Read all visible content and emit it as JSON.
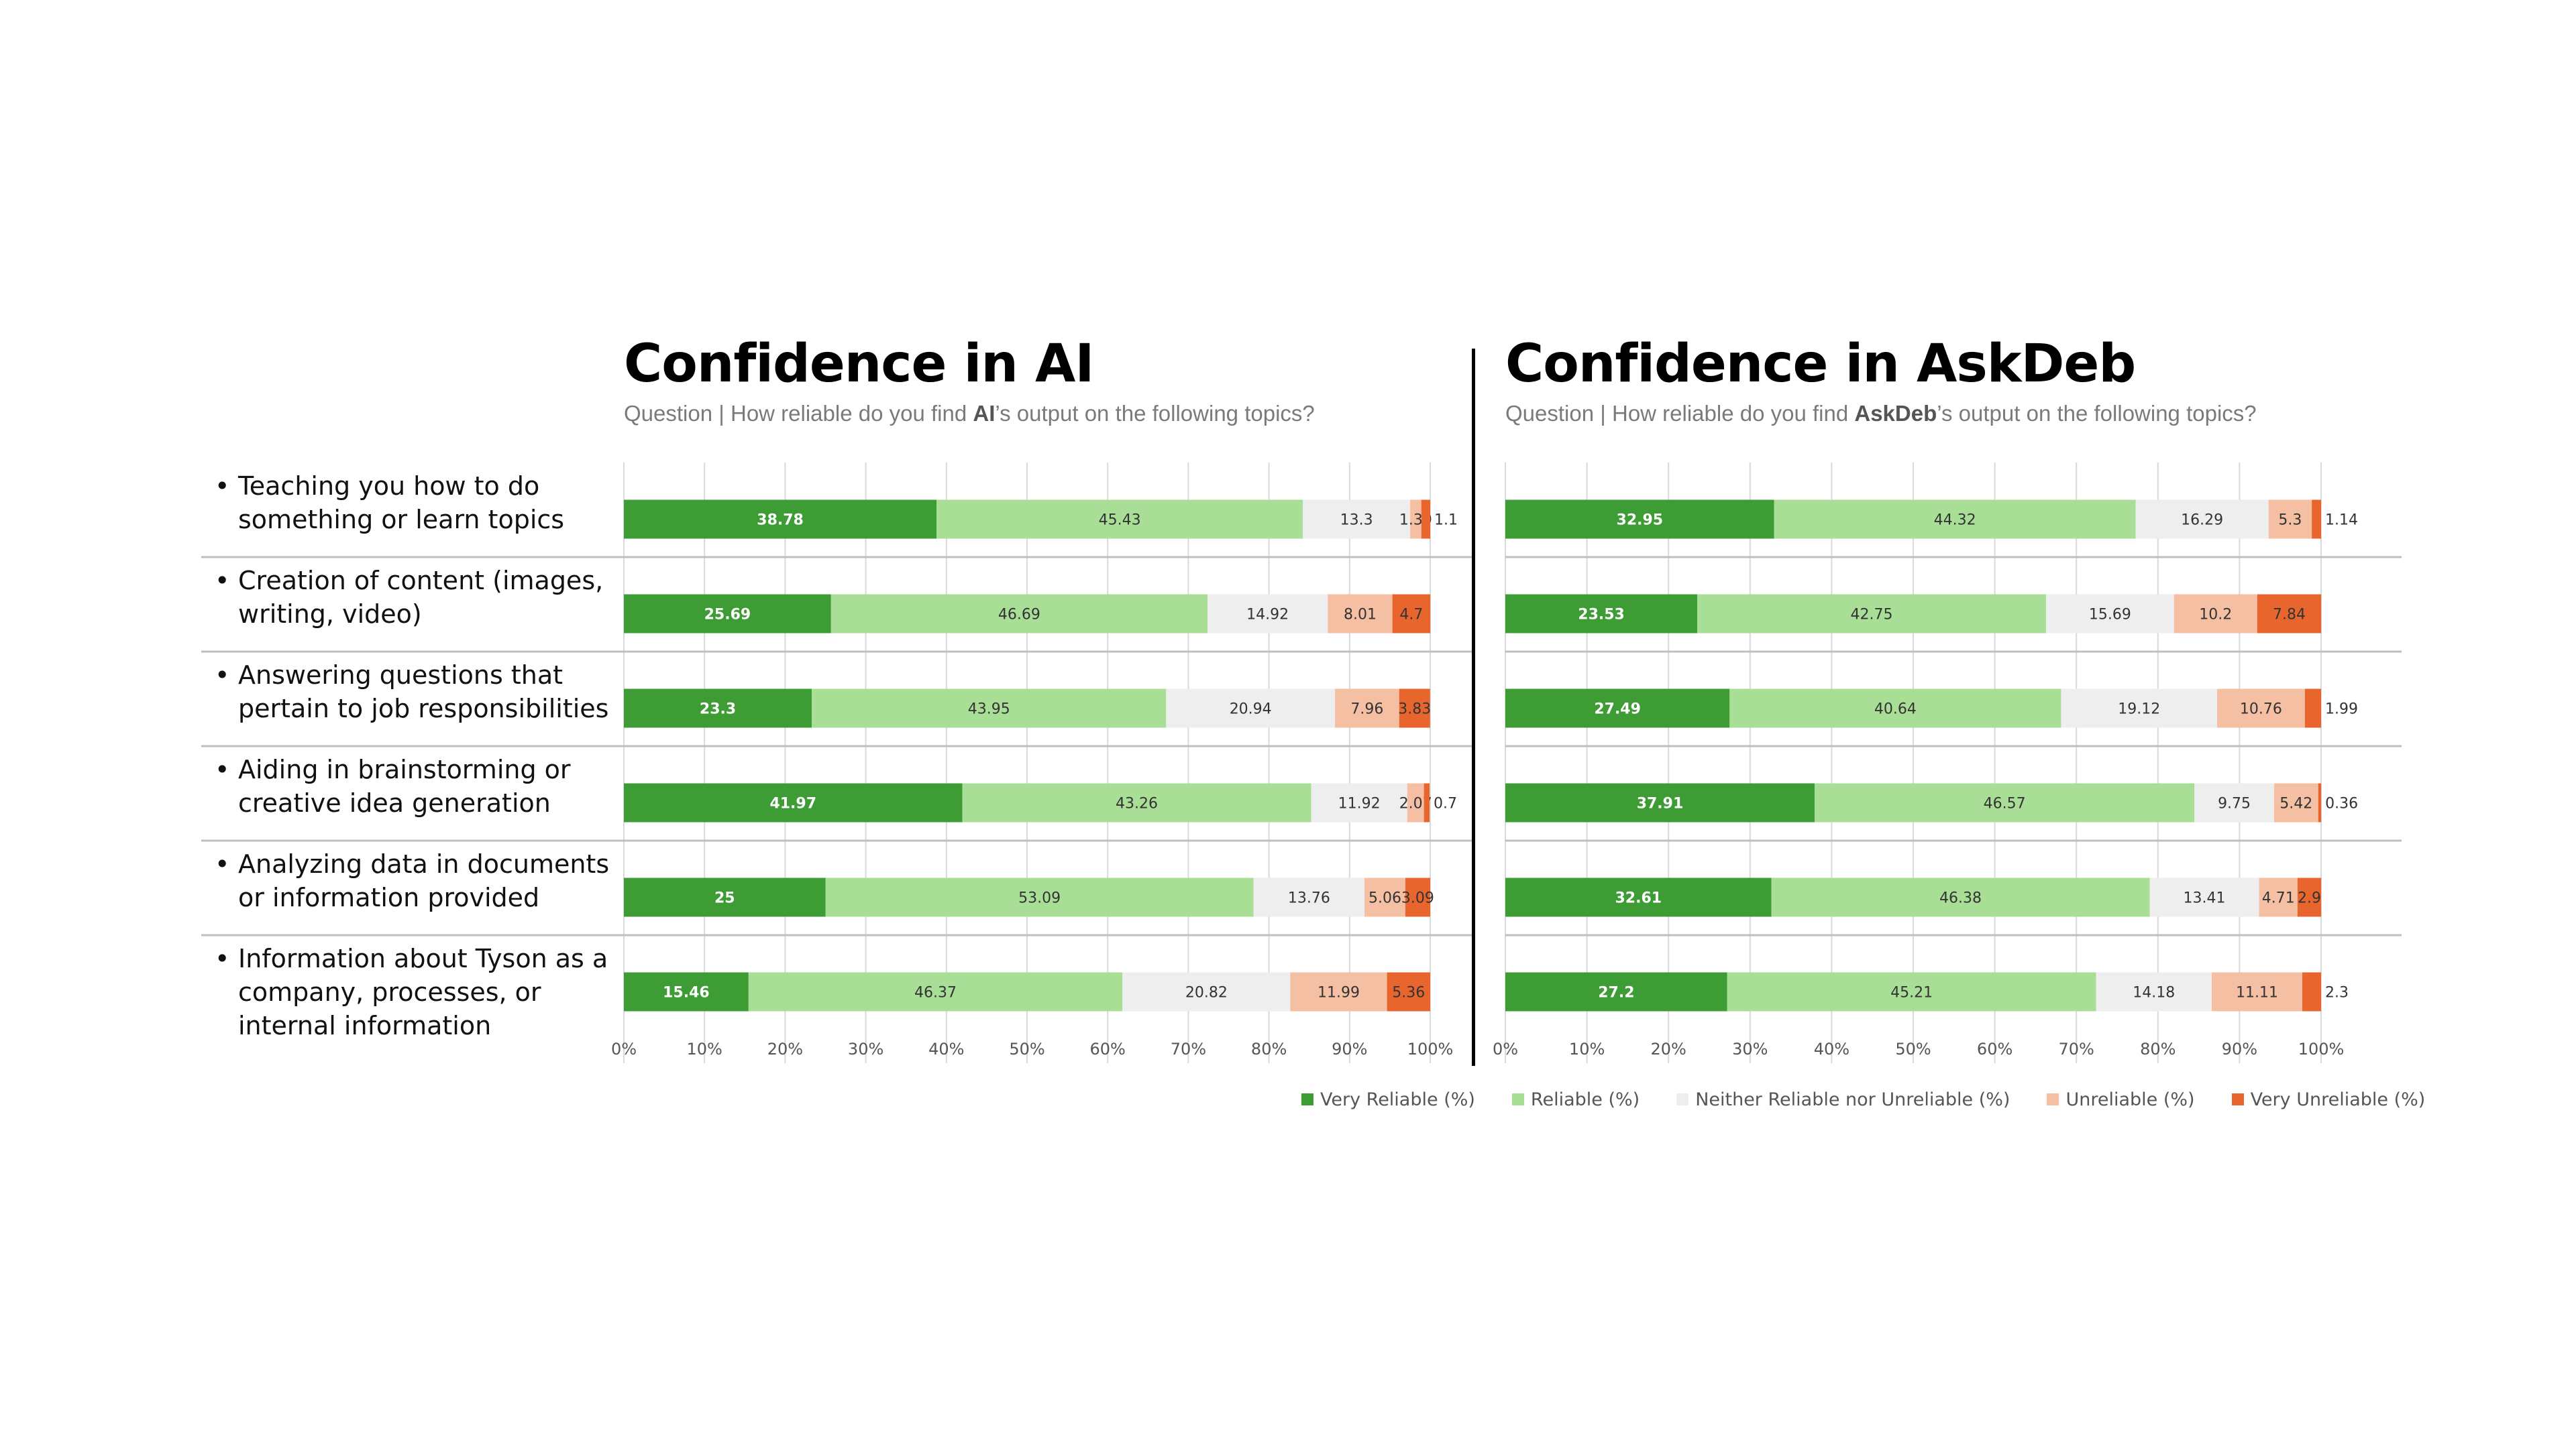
{
  "charts": [
    {
      "title": "Confidence in AI",
      "subtitle_prefix": "Question | How reliable do you find ",
      "subtitle_bold": "AI",
      "subtitle_suffix": "’s output on the following topics?"
    },
    {
      "title": "Confidence in AskDeb",
      "subtitle_prefix": "Question | How reliable do you find ",
      "subtitle_bold": "AskDeb",
      "subtitle_suffix": "’s output on the following topics?"
    }
  ],
  "categories": [
    "Teaching you how to do something or learn topics",
    "Creation of content (images, writing, video)",
    "Answering questions that pertain to job responsibilities",
    "Aiding in brainstorming or creative idea generation",
    "Analyzing data in documents or information provided",
    "Information about Tyson as a company, processes, or internal information"
  ],
  "bullet": "•",
  "legend": [
    {
      "label": "Very Reliable (%)",
      "color": "#3e9c35"
    },
    {
      "label": "Reliable (%)",
      "color": "#a9de96"
    },
    {
      "label": "Neither Reliable nor Unreliable (%)",
      "color": "#eeeeee"
    },
    {
      "label": "Unreliable (%)",
      "color": "#f5bfa3"
    },
    {
      "label": "Very Unreliable (%)",
      "color": "#e8662d"
    }
  ],
  "chart_data": [
    {
      "type": "bar",
      "orientation": "horizontal-stacked",
      "title": "Confidence in AI",
      "categories": [
        "Teaching you how to do something or learn topics",
        "Creation of content (images, writing, video)",
        "Answering questions that pertain to job responsibilities",
        "Aiding in brainstorming or creative idea generation",
        "Analyzing data in documents or information provided",
        "Information about Tyson as a company, processes, or internal information"
      ],
      "series": [
        {
          "name": "Very Reliable (%)",
          "values": [
            38.78,
            25.69,
            23.3,
            41.97,
            25,
            15.46
          ]
        },
        {
          "name": "Reliable (%)",
          "values": [
            45.43,
            46.69,
            43.95,
            43.26,
            53.09,
            46.37
          ]
        },
        {
          "name": "Neither Reliable nor Unreliable (%)",
          "values": [
            13.3,
            14.92,
            20.94,
            11.92,
            13.76,
            20.82
          ]
        },
        {
          "name": "Unreliable (%)",
          "values": [
            1.39,
            8.01,
            7.96,
            2.07,
            5.06,
            11.99
          ]
        },
        {
          "name": "Very Unreliable (%)",
          "values": [
            1.1,
            4.7,
            3.83,
            0.7,
            3.09,
            5.36
          ]
        }
      ],
      "xlim": [
        0,
        100
      ],
      "xticks": [
        "0%",
        "10%",
        "20%",
        "30%",
        "40%",
        "50%",
        "60%",
        "70%",
        "80%",
        "90%",
        "100%"
      ],
      "grid": true,
      "legend_position": "bottom"
    },
    {
      "type": "bar",
      "orientation": "horizontal-stacked",
      "title": "Confidence in AskDeb",
      "categories": [
        "Teaching you how to do something or learn topics",
        "Creation of content (images, writing, video)",
        "Answering questions that pertain to job responsibilities",
        "Aiding in brainstorming or creative idea generation",
        "Analyzing data in documents or information provided",
        "Information about Tyson as a company, processes, or internal information"
      ],
      "series": [
        {
          "name": "Very Reliable (%)",
          "values": [
            32.95,
            23.53,
            27.49,
            37.91,
            32.61,
            27.2
          ]
        },
        {
          "name": "Reliable (%)",
          "values": [
            44.32,
            42.75,
            40.64,
            46.57,
            46.38,
            45.21
          ]
        },
        {
          "name": "Neither Reliable nor Unreliable (%)",
          "values": [
            16.29,
            15.69,
            19.12,
            9.75,
            13.41,
            14.18
          ]
        },
        {
          "name": "Unreliable (%)",
          "values": [
            5.3,
            10.2,
            10.76,
            5.42,
            4.71,
            11.11
          ]
        },
        {
          "name": "Very Unreliable (%)",
          "values": [
            1.14,
            7.84,
            1.99,
            0.36,
            2.9,
            2.3
          ]
        }
      ],
      "xlim": [
        0,
        100
      ],
      "xticks": [
        "0%",
        "10%",
        "20%",
        "30%",
        "40%",
        "50%",
        "60%",
        "70%",
        "80%",
        "90%",
        "100%"
      ],
      "grid": true,
      "legend_position": "bottom"
    }
  ]
}
